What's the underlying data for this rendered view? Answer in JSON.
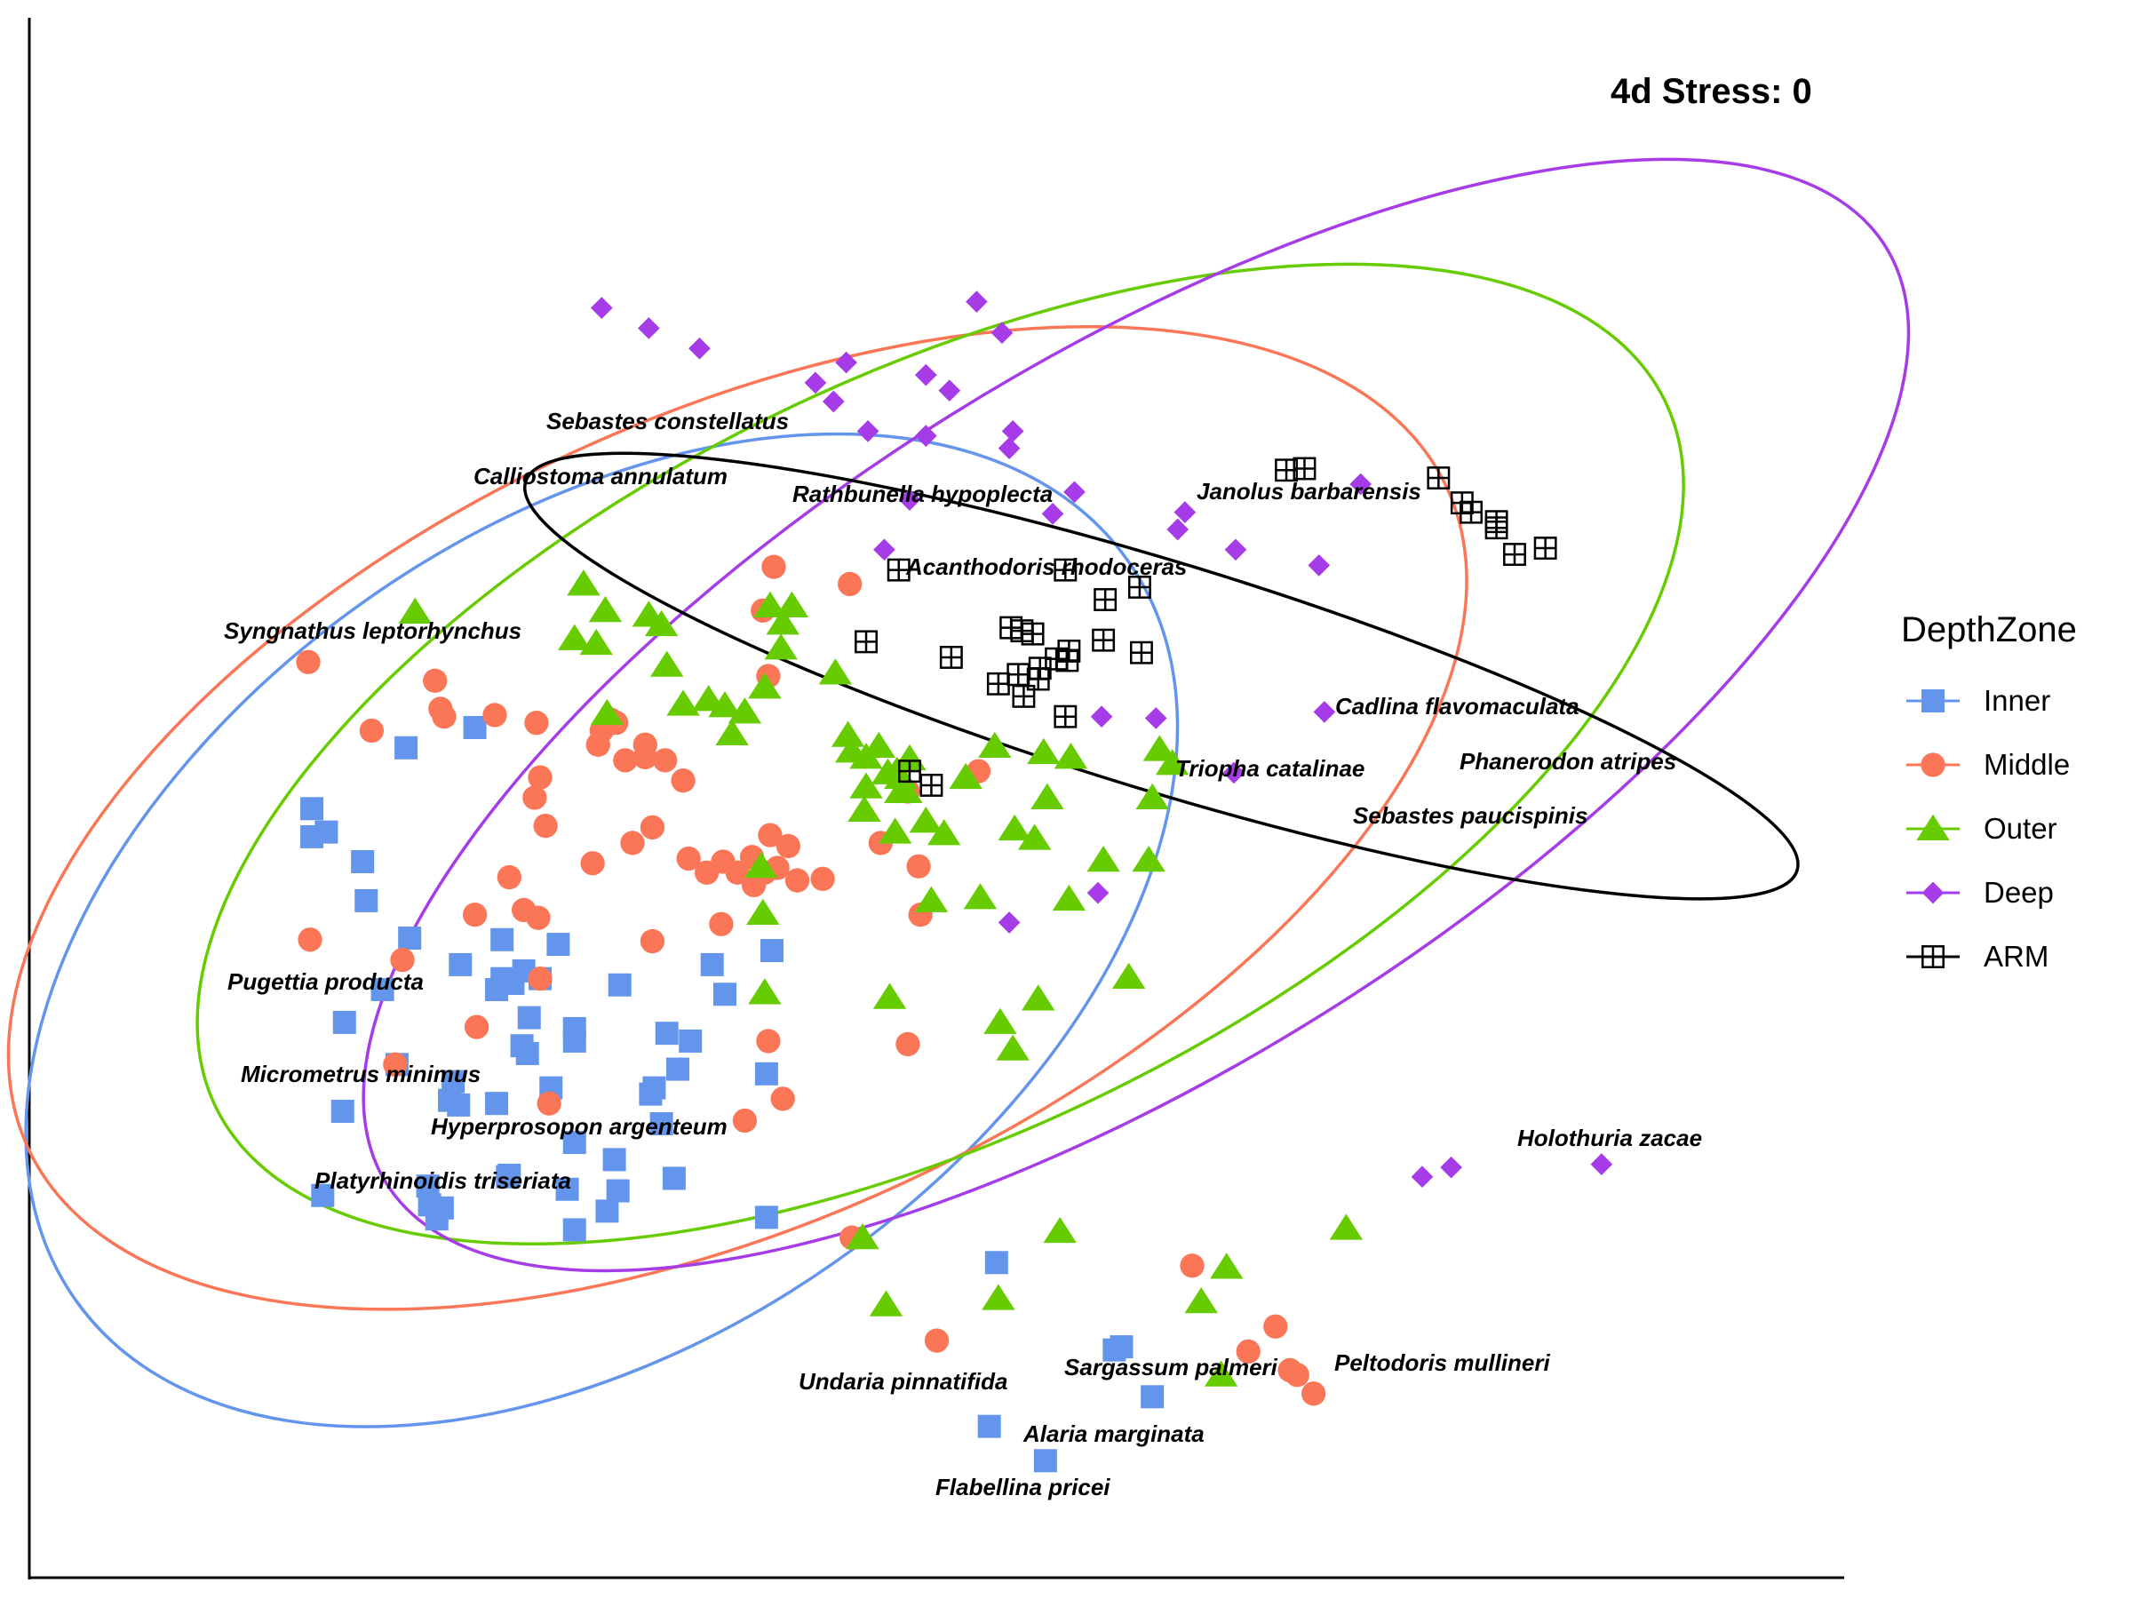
{
  "chart_data": {
    "type": "scatter",
    "title": "",
    "xlabel": "",
    "ylabel": "",
    "xlim": [
      0,
      1000
    ],
    "ylim": [
      0,
      1000
    ],
    "grid": false,
    "annotation": "4d Stress: 0",
    "legend": {
      "title": "DepthZone",
      "position": "right",
      "entries": [
        {
          "label": "Inner",
          "shape": "square",
          "color": "#6495ED"
        },
        {
          "label": "Middle",
          "shape": "circle",
          "color": "#FA7656"
        },
        {
          "label": "Outer",
          "shape": "triangle",
          "color": "#66CC00"
        },
        {
          "label": "Deep",
          "shape": "diamond",
          "color": "#A63BE8"
        },
        {
          "label": "ARM",
          "shape": "boxplus",
          "color": "#000000"
        }
      ]
    },
    "ellipses": [
      {
        "group": "Inner",
        "color": "#6495ED",
        "center": [
          316,
          415
        ],
        "rx": 355,
        "ry": 260,
        "angle": 35
      },
      {
        "group": "Middle",
        "color": "#FA7656",
        "center": [
          391,
          487
        ],
        "rx": 432,
        "ry": 257,
        "angle": 25
      },
      {
        "group": "Outer",
        "color": "#66CC00",
        "center": [
          503,
          528
        ],
        "rx": 445,
        "ry": 242,
        "angle": 26
      },
      {
        "group": "Deep",
        "color": "#A63BE8",
        "center": [
          611,
          553
        ],
        "rx": 488,
        "ry": 226,
        "angle": 32
      },
      {
        "group": "ARM",
        "color": "#000000",
        "center": [
          625,
          578
        ],
        "rx": 367,
        "ry": 73,
        "angle": -17
      }
    ],
    "series": [
      {
        "name": "Inner",
        "points": [
          [
            208,
            532
          ],
          [
            156,
            493
          ],
          [
            156,
            475
          ],
          [
            164,
            478
          ],
          [
            184,
            459
          ],
          [
            186,
            434
          ],
          [
            210,
            410
          ],
          [
            238,
            393
          ],
          [
            261,
            409
          ],
          [
            261,
            384
          ],
          [
            267,
            381
          ],
          [
            273,
            389
          ],
          [
            292,
            406
          ],
          [
            282,
            384
          ],
          [
            195,
            377
          ],
          [
            174,
            356
          ],
          [
            258,
            377
          ],
          [
            276,
            359
          ],
          [
            301,
            352
          ],
          [
            301,
            344
          ],
          [
            377,
            393
          ],
          [
            410,
            402
          ],
          [
            407,
            323
          ],
          [
            384,
            374
          ],
          [
            326,
            380
          ],
          [
            272,
            341
          ],
          [
            275,
            336
          ],
          [
            203,
            329
          ],
          [
            234,
            318
          ],
          [
            173,
            299
          ],
          [
            232,
            306
          ],
          [
            237,
            303
          ],
          [
            258,
            304
          ],
          [
            288,
            314
          ],
          [
            264,
            257
          ],
          [
            297,
            249
          ],
          [
            220,
            251
          ],
          [
            162,
            245
          ],
          [
            228,
            237
          ],
          [
            265,
            258
          ],
          [
            301,
            279
          ],
          [
            323,
            268
          ],
          [
            352,
            349
          ],
          [
            365,
            344
          ],
          [
            358,
            326
          ],
          [
            343,
            310
          ],
          [
            345,
            314
          ],
          [
            349,
            291
          ],
          [
            319,
            235
          ],
          [
            325,
            248
          ],
          [
            407,
            231
          ],
          [
            221,
            239
          ],
          [
            225,
            230
          ],
          [
            301,
            223
          ],
          [
            356,
            256
          ],
          [
            534,
            202
          ],
          [
            599,
            146
          ],
          [
            603,
            148
          ],
          [
            620,
            116
          ],
          [
            530,
            97
          ],
          [
            561,
            75
          ],
          [
            246,
            545
          ]
        ]
      },
      {
        "name": "Middle",
        "points": [
          [
            154,
            587
          ],
          [
            224,
            575
          ],
          [
            227,
            557
          ],
          [
            229,
            552
          ],
          [
            189,
            543
          ],
          [
            257,
            553
          ],
          [
            280,
            548
          ],
          [
            282,
            513
          ],
          [
            316,
            543
          ],
          [
            279,
            500
          ],
          [
            285,
            482
          ],
          [
            314,
            534
          ],
          [
            321,
            550
          ],
          [
            324,
            548
          ],
          [
            329,
            524
          ],
          [
            340,
            534
          ],
          [
            340,
            526
          ],
          [
            351,
            524
          ],
          [
            361,
            511
          ],
          [
            344,
            481
          ],
          [
            364,
            461
          ],
          [
            383,
            459
          ],
          [
            409,
            476
          ],
          [
            419,
            469
          ],
          [
            391,
            452
          ],
          [
            374,
            452
          ],
          [
            333,
            471
          ],
          [
            311,
            458
          ],
          [
            399,
            462
          ],
          [
            413,
            455
          ],
          [
            400,
            444
          ],
          [
            406,
            452
          ],
          [
            424,
            447
          ],
          [
            438,
            448
          ],
          [
            470,
            471
          ],
          [
            491,
            456
          ],
          [
            492,
            425
          ],
          [
            382,
            419
          ],
          [
            281,
            423
          ],
          [
            265,
            449
          ],
          [
            282,
            384
          ],
          [
            273,
            428
          ],
          [
            344,
            408
          ],
          [
            206,
            396
          ],
          [
            155,
            409
          ],
          [
            246,
            425
          ],
          [
            202,
            329
          ],
          [
            408,
            344
          ],
          [
            485,
            342
          ],
          [
            416,
            307
          ],
          [
            395,
            293
          ],
          [
            454,
            218
          ],
          [
            501,
            152
          ],
          [
            642,
            200
          ],
          [
            688,
            161
          ],
          [
            673,
            145
          ],
          [
            700,
            130
          ],
          [
            696,
            133
          ],
          [
            709,
            118
          ],
          [
            411,
            648
          ],
          [
            405,
            620
          ],
          [
            524,
            517
          ],
          [
            485,
            504
          ],
          [
            453,
            637
          ],
          [
            408,
            578
          ],
          [
            287,
            304
          ],
          [
            247,
            353
          ]
        ]
      },
      {
        "name": "Outer",
        "points": [
          [
            213,
            619
          ],
          [
            306,
            637
          ],
          [
            301,
            602
          ],
          [
            318,
            620
          ],
          [
            342,
            617
          ],
          [
            349,
            611
          ],
          [
            445,
            580
          ],
          [
            421,
            623
          ],
          [
            319,
            554
          ],
          [
            313,
            599
          ],
          [
            352,
            585
          ],
          [
            375,
            563
          ],
          [
            384,
            559
          ],
          [
            395,
            555
          ],
          [
            361,
            560
          ],
          [
            388,
            541
          ],
          [
            409,
            623
          ],
          [
            415,
            596
          ],
          [
            416,
            612
          ],
          [
            406,
            571
          ],
          [
            454,
            530
          ],
          [
            452,
            540
          ],
          [
            469,
            533
          ],
          [
            474,
            516
          ],
          [
            481,
            504
          ],
          [
            486,
            525
          ],
          [
            462,
            526
          ],
          [
            495,
            485
          ],
          [
            483,
            504
          ],
          [
            481,
            513
          ],
          [
            484,
            504
          ],
          [
            479,
            517
          ],
          [
            505,
            477
          ],
          [
            462,
            507
          ],
          [
            461,
            492
          ],
          [
            517,
            513
          ],
          [
            544,
            480
          ],
          [
            560,
            529
          ],
          [
            533,
            533
          ],
          [
            575,
            526
          ],
          [
            562,
            500
          ],
          [
            555,
            474
          ],
          [
            478,
            478
          ],
          [
            498,
            434
          ],
          [
            525,
            436
          ],
          [
            404,
            456
          ],
          [
            405,
            426
          ],
          [
            574,
            435
          ],
          [
            543,
            339
          ],
          [
            557,
            371
          ],
          [
            475,
            372
          ],
          [
            536,
            356
          ],
          [
            406,
            375
          ],
          [
            631,
            522
          ],
          [
            624,
            531
          ],
          [
            620,
            500
          ],
          [
            593,
            460
          ],
          [
            618,
            460
          ],
          [
            607,
            385
          ],
          [
            473,
            175
          ],
          [
            535,
            179
          ],
          [
            661,
            199
          ],
          [
            647,
            177
          ],
          [
            727,
            224
          ],
          [
            658,
            130
          ],
          [
            569,
            222
          ],
          [
            460,
            218
          ]
        ]
      },
      {
        "name": "Deep",
        "points": [
          [
            316,
            814
          ],
          [
            342,
            801
          ],
          [
            370,
            788
          ],
          [
            434,
            766
          ],
          [
            523,
            818
          ],
          [
            537,
            798
          ],
          [
            541,
            724
          ],
          [
            495,
            771
          ],
          [
            451,
            779
          ],
          [
            463,
            735
          ],
          [
            508,
            761
          ],
          [
            543,
            735
          ],
          [
            577,
            696
          ],
          [
            444,
            754
          ],
          [
            495,
            732
          ],
          [
            486,
            691
          ],
          [
            472,
            659
          ],
          [
            638,
            683
          ],
          [
            634,
            672
          ],
          [
            712,
            649
          ],
          [
            735,
            701
          ],
          [
            565,
            682
          ],
          [
            622,
            551
          ],
          [
            592,
            552
          ],
          [
            665,
            516
          ],
          [
            715,
            555
          ],
          [
            666,
            659
          ],
          [
            590,
            439
          ],
          [
            541,
            420
          ],
          [
            769,
            257
          ],
          [
            785,
            263
          ],
          [
            868,
            265
          ]
        ]
      },
      {
        "name": "ARM",
        "points": [
          [
            694,
            710
          ],
          [
            704,
            711
          ],
          [
            778,
            705
          ],
          [
            791,
            689
          ],
          [
            796,
            683
          ],
          [
            810,
            673
          ],
          [
            810,
            677
          ],
          [
            820,
            656
          ],
          [
            837,
            660
          ],
          [
            572,
            646
          ],
          [
            613,
            635
          ],
          [
            594,
            627
          ],
          [
            509,
            590
          ],
          [
            542,
            609
          ],
          [
            548,
            607
          ],
          [
            554,
            605
          ],
          [
            546,
            579
          ],
          [
            535,
            573
          ],
          [
            549,
            565
          ],
          [
            557,
            576
          ],
          [
            558,
            583
          ],
          [
            567,
            589
          ],
          [
            573,
            588
          ],
          [
            574,
            594
          ],
          [
            572,
            552
          ],
          [
            593,
            601
          ],
          [
            462,
            600
          ],
          [
            498,
            508
          ],
          [
            486,
            517
          ],
          [
            614,
            593
          ],
          [
            480,
            646
          ]
        ]
      }
    ],
    "species_labels": [
      "Sebastes constellatus",
      "Calliostoma annulatum",
      "Rathbunella hypoplecta",
      "Janolus barbarensis",
      "Acanthodoris rhodoceras",
      "Syngnathus leptorhynchus",
      "Cadlina flavomaculata",
      "Triopha catalinae",
      "Phanerodon atripes",
      "Sebastes paucispinis",
      "Pugettia producta",
      "Micrometrus minimus",
      "Hyperprosopon argenteum",
      "Platyrhinoidis triseriata",
      "Holothuria zacae",
      "Undaria pinnatifida",
      "Sargassum palmeri",
      "Peltodoris mullineri",
      "Alaria marginata",
      "Flabellina pricei"
    ]
  }
}
